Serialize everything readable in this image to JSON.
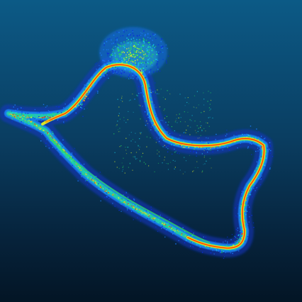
{
  "scene": {
    "kind": "lidar-point-cloud-trajectory",
    "color_scale": [
      "#0a2fd6",
      "#1a7cff",
      "#16d2e8",
      "#25e25a",
      "#d8f028",
      "#ffb400",
      "#ff2a10"
    ],
    "background_top": "#0c5a86",
    "background_bottom": "#031525"
  }
}
